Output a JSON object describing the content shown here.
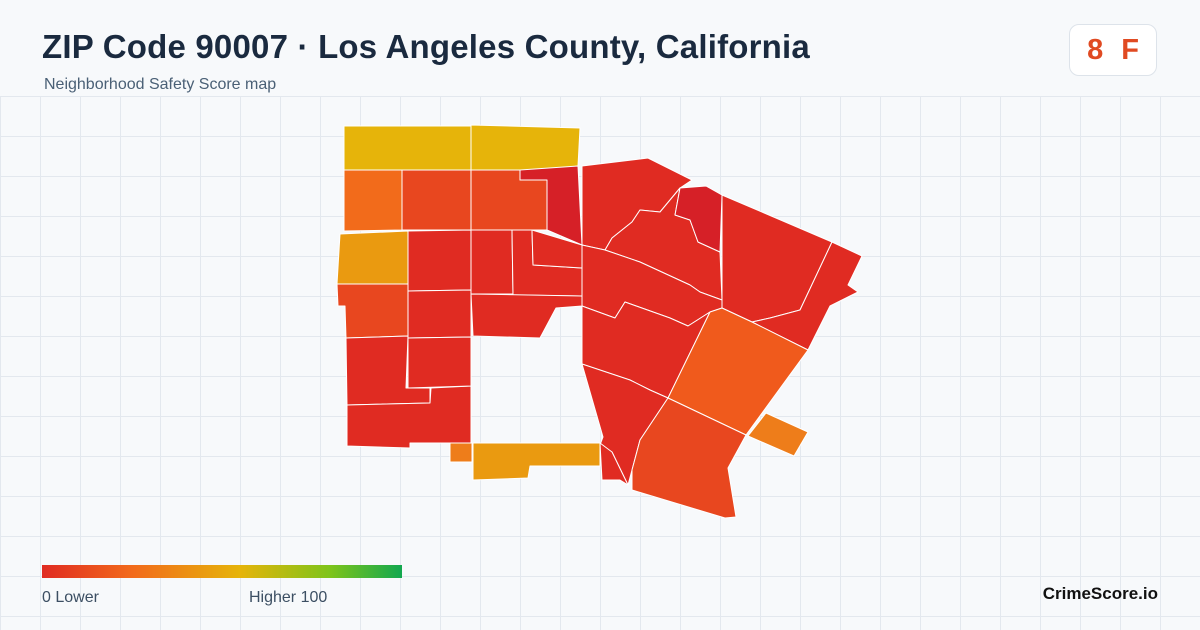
{
  "header": {
    "title": "ZIP Code 90007 · Los Angeles County, California",
    "subtitle": "Neighborhood Safety Score map"
  },
  "grade": {
    "score": "8",
    "letter": "F",
    "color": "#e04a22"
  },
  "legend": {
    "min_label": "0  Lower",
    "max_label": "Higher  100",
    "color_low": "#e02b22",
    "color_mid": "#e6b40a",
    "color_high": "#12a84f"
  },
  "brand": "CrimeScore.io",
  "map": {
    "fill_colors": [
      "#e6b40a",
      "#f26b1b",
      "#e8471f",
      "#e02b22",
      "#d62027",
      "#ea9a10",
      "#f05a1c",
      "#ee7d1a"
    ]
  }
}
